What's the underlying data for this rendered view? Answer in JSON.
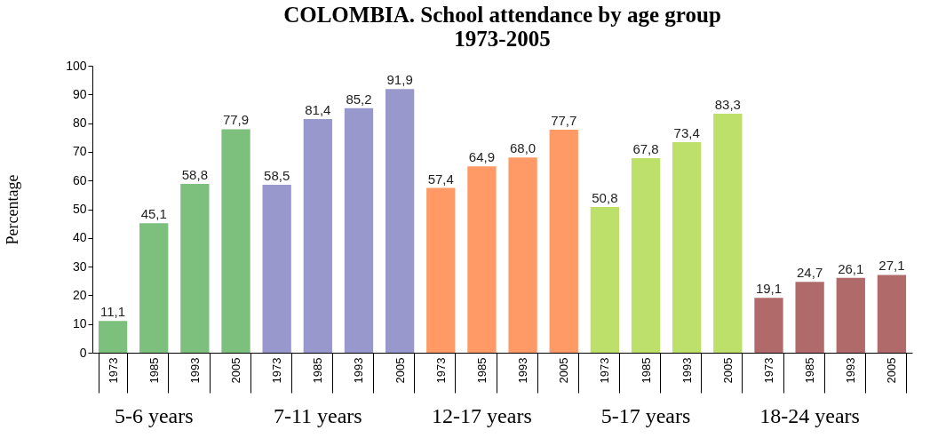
{
  "chart_data": {
    "type": "bar",
    "title": "COLOMBIA. School attendance by age group",
    "subtitle": "1973-2005",
    "ylabel": "Percentage",
    "categories": [
      "1973",
      "1985",
      "1993",
      "2005",
      "1973",
      "1985",
      "1993",
      "2005",
      "1973",
      "1985",
      "1993",
      "2005",
      "1973",
      "1985",
      "1993",
      "2005",
      "1973",
      "1985",
      "1993",
      "2005"
    ],
    "series": [
      {
        "name": "5-6 years",
        "color": "#7dbf7d",
        "values": [
          11.1,
          45.1,
          58.8,
          77.9,
          null,
          null,
          null,
          null,
          null,
          null,
          null,
          null,
          null,
          null,
          null,
          null,
          null,
          null,
          null,
          null
        ],
        "value_labels": [
          "11,1",
          "45,1",
          "58,8",
          "77,9",
          null,
          null,
          null,
          null,
          null,
          null,
          null,
          null,
          null,
          null,
          null,
          null,
          null,
          null,
          null,
          null
        ]
      },
      {
        "name": "7-11 years",
        "color": "#9898cc",
        "values": [
          null,
          null,
          null,
          null,
          58.5,
          81.4,
          85.2,
          91.9,
          null,
          null,
          null,
          null,
          null,
          null,
          null,
          null,
          null,
          null,
          null,
          null
        ],
        "value_labels": [
          null,
          null,
          null,
          null,
          "58,5",
          "81,4",
          "85,2",
          "91,9",
          null,
          null,
          null,
          null,
          null,
          null,
          null,
          null,
          null,
          null,
          null,
          null
        ]
      },
      {
        "name": "12-17 years",
        "color": "#ff9a66",
        "values": [
          null,
          null,
          null,
          null,
          null,
          null,
          null,
          null,
          57.4,
          64.9,
          68.0,
          77.7,
          null,
          null,
          null,
          null,
          null,
          null,
          null,
          null
        ],
        "value_labels": [
          null,
          null,
          null,
          null,
          null,
          null,
          null,
          null,
          "57,4",
          "64,9",
          "68,0",
          "77,7",
          null,
          null,
          null,
          null,
          null,
          null,
          null,
          null
        ]
      },
      {
        "name": "5-17 years",
        "color": "#bde06a",
        "values": [
          null,
          null,
          null,
          null,
          null,
          null,
          null,
          null,
          null,
          null,
          null,
          null,
          50.8,
          67.8,
          73.4,
          83.3,
          null,
          null,
          null,
          null
        ],
        "value_labels": [
          null,
          null,
          null,
          null,
          null,
          null,
          null,
          null,
          null,
          null,
          null,
          null,
          "50,8",
          "67,8",
          "73,4",
          "83,3",
          null,
          null,
          null,
          null
        ]
      },
      {
        "name": "18-24 years",
        "color": "#b06a6a",
        "values": [
          null,
          null,
          null,
          null,
          null,
          null,
          null,
          null,
          null,
          null,
          null,
          null,
          null,
          null,
          null,
          null,
          19.1,
          24.7,
          26.1,
          27.1
        ],
        "value_labels": [
          null,
          null,
          null,
          null,
          null,
          null,
          null,
          null,
          null,
          null,
          null,
          null,
          null,
          null,
          null,
          null,
          "19,1",
          "24,7",
          "26,1",
          "27,1"
        ]
      }
    ],
    "ylim": [
      0,
      100
    ],
    "yticks": [
      0,
      10,
      20,
      30,
      40,
      50,
      60,
      70,
      80,
      90,
      100
    ],
    "grid": false,
    "legend": false
  }
}
